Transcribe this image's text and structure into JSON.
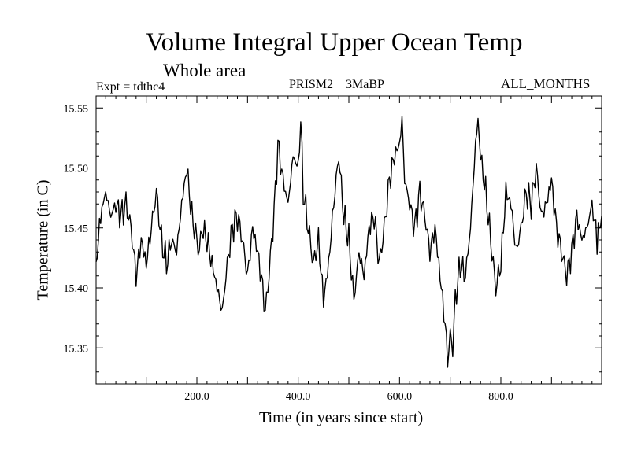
{
  "chart_data": {
    "type": "line",
    "title": "Volume Integral Upper Ocean Temp",
    "subtitle": "Whole area",
    "header_left": "Expt = tdthc4",
    "header_center": "PRISM2    3MaBP",
    "header_right": "ALL_MONTHS",
    "xlabel": "Time (in years since start)",
    "ylabel": "Temperature (in C)",
    "xlim": [
      1,
      999
    ],
    "ylim": [
      15.32,
      15.56
    ],
    "x_ticks": [
      200,
      400,
      600,
      800
    ],
    "x_tick_labels": [
      "200.0",
      "400.0",
      "600.0",
      "800.0"
    ],
    "y_ticks": [
      15.35,
      15.4,
      15.45,
      15.5,
      15.55
    ],
    "y_tick_labels": [
      "15.35",
      "15.40",
      "15.45",
      "15.50",
      "15.55"
    ],
    "grid": false,
    "series": [
      {
        "name": "Volume integral upper ocean temp",
        "x": [
          1,
          10,
          20,
          30,
          40,
          50,
          60,
          70,
          80,
          90,
          100,
          110,
          120,
          130,
          140,
          150,
          160,
          170,
          180,
          190,
          200,
          205,
          210,
          220,
          230,
          240,
          250,
          260,
          270,
          280,
          290,
          300,
          310,
          320,
          330,
          335,
          340,
          350,
          355,
          360,
          370,
          380,
          390,
          400,
          405,
          410,
          420,
          430,
          440,
          450,
          460,
          470,
          480,
          490,
          500,
          510,
          520,
          530,
          540,
          550,
          560,
          570,
          580,
          590,
          600,
          605,
          610,
          620,
          630,
          640,
          650,
          660,
          670,
          680,
          690,
          695,
          700,
          705,
          710,
          720,
          730,
          740,
          750,
          755,
          760,
          770,
          780,
          790,
          800,
          810,
          820,
          830,
          840,
          850,
          860,
          870,
          880,
          890,
          900,
          910,
          920,
          930,
          940,
          950,
          960,
          970,
          980,
          990,
          999
        ],
        "values": [
          15.42,
          15.46,
          15.48,
          15.46,
          15.47,
          15.46,
          15.47,
          15.45,
          15.41,
          15.44,
          15.42,
          15.45,
          15.48,
          15.44,
          15.42,
          15.44,
          15.43,
          15.47,
          15.5,
          15.46,
          15.44,
          15.43,
          15.45,
          15.44,
          15.42,
          15.4,
          15.38,
          15.42,
          15.45,
          15.46,
          15.44,
          15.41,
          15.45,
          15.43,
          15.4,
          15.38,
          15.4,
          15.45,
          15.48,
          15.52,
          15.49,
          15.47,
          15.51,
          15.5,
          15.54,
          15.48,
          15.45,
          15.42,
          15.44,
          15.39,
          15.42,
          15.47,
          15.51,
          15.46,
          15.44,
          15.39,
          15.43,
          15.41,
          15.45,
          15.46,
          15.42,
          15.45,
          15.49,
          15.51,
          15.52,
          15.54,
          15.49,
          15.47,
          15.45,
          15.48,
          15.46,
          15.43,
          15.45,
          15.41,
          15.37,
          15.34,
          15.36,
          15.35,
          15.39,
          15.42,
          15.41,
          15.45,
          15.52,
          15.54,
          15.51,
          15.48,
          15.44,
          15.4,
          15.42,
          15.48,
          15.47,
          15.43,
          15.45,
          15.48,
          15.47,
          15.5,
          15.46,
          15.47,
          15.49,
          15.45,
          15.43,
          15.41,
          15.43,
          15.46,
          15.44,
          15.45,
          15.47,
          15.44,
          15.46
        ]
      }
    ]
  }
}
